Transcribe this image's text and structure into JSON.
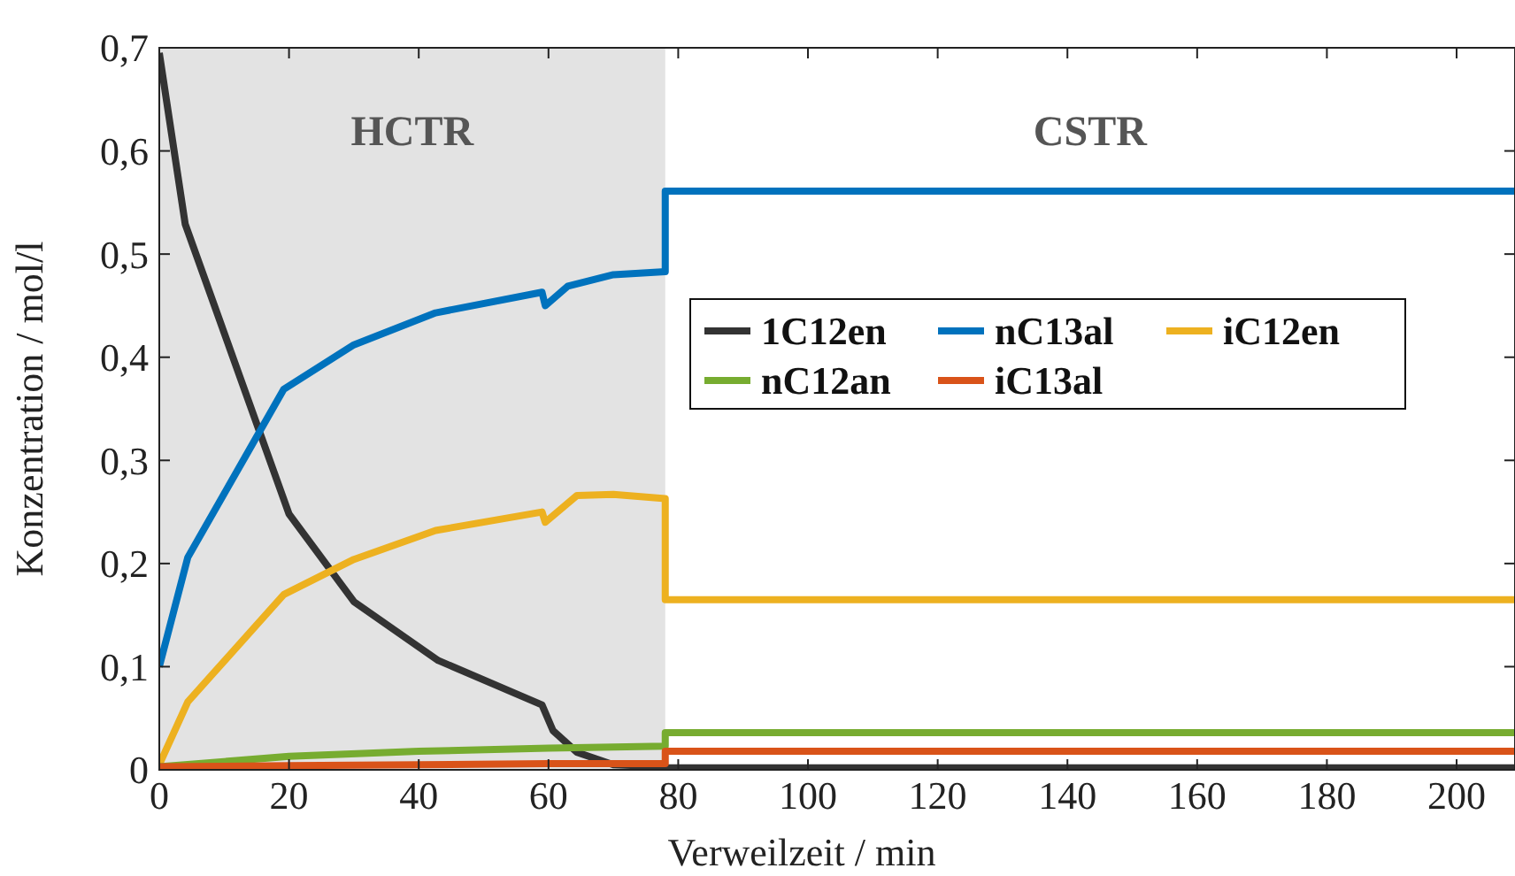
{
  "chart_data": {
    "type": "line",
    "xlabel": "Verweilzeit / min",
    "ylabel": "Konzentration / mol/l",
    "xlim": [
      0,
      209
    ],
    "xticks": [
      0,
      20,
      40,
      60,
      80,
      100,
      120,
      140,
      160,
      180,
      200
    ],
    "ylim": [
      0,
      0.7
    ],
    "yticks": [
      {
        "value": 0,
        "label": "0"
      },
      {
        "value": 0.1,
        "label": "0,1"
      },
      {
        "value": 0.2,
        "label": "0,2"
      },
      {
        "value": 0.3,
        "label": "0,3"
      },
      {
        "value": 0.4,
        "label": "0,4"
      },
      {
        "value": 0.5,
        "label": "0,5"
      },
      {
        "value": 0.6,
        "label": "0,6"
      },
      {
        "value": 0.7,
        "label": "0,7"
      }
    ],
    "grid": false,
    "legend": "right",
    "marker": "none",
    "line_style": "solid",
    "bands": [
      {
        "axis": "x",
        "from": 0,
        "to": 78,
        "label": "HCTR",
        "color": "#e3e3e3"
      }
    ],
    "annotations": [
      "CSTR"
    ],
    "series": [
      {
        "name": "1C12en",
        "color": "#333333",
        "x": [
          0,
          4,
          20,
          30,
          43,
          59,
          60.7,
          64.4,
          70,
          78,
          78,
          209
        ],
        "values": [
          0.695,
          0.529,
          0.248,
          0.163,
          0.106,
          0.063,
          0.038,
          0.017,
          0.005,
          0.003,
          0.002,
          0.002
        ]
      },
      {
        "name": "nC13al",
        "color": "#0072bd",
        "x": [
          0,
          4.4,
          19.2,
          30,
          42.6,
          59,
          59.5,
          63,
          70,
          78,
          78,
          209
        ],
        "values": [
          0.1,
          0.206,
          0.369,
          0.412,
          0.443,
          0.463,
          0.45,
          0.469,
          0.48,
          0.483,
          0.561,
          0.561
        ]
      },
      {
        "name": "iC12en",
        "color": "#edb120",
        "x": [
          0,
          4.4,
          19.2,
          30,
          42.6,
          59,
          59.5,
          64.4,
          70,
          78,
          78,
          209
        ],
        "values": [
          0.005,
          0.066,
          0.17,
          0.204,
          0.232,
          0.25,
          0.24,
          0.266,
          0.267,
          0.263,
          0.165,
          0.165
        ]
      },
      {
        "name": "nC12an",
        "color": "#77ac30",
        "x": [
          0,
          20,
          40,
          60,
          78,
          78,
          209
        ],
        "values": [
          0.003,
          0.013,
          0.018,
          0.021,
          0.023,
          0.036,
          0.036
        ]
      },
      {
        "name": "iC13al",
        "color": "#d95319",
        "x": [
          0,
          20,
          40,
          60,
          78,
          78,
          209
        ],
        "values": [
          0.003,
          0.004,
          0.005,
          0.006,
          0.006,
          0.018,
          0.018
        ]
      }
    ]
  }
}
